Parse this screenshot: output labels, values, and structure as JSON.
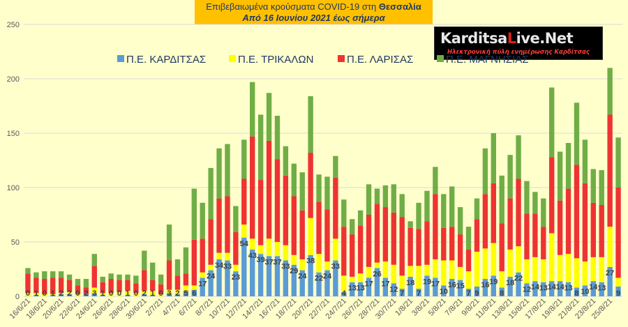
{
  "header": {
    "title_line1_prefix": "Επιβεβαιωμένα κρούσματα COVID-19 στη ",
    "title_line1_bold": "Θεσσαλία",
    "title_line2": "Από 16 Ιουνίου 2021 έως σήμερα"
  },
  "logo": {
    "main_prefix": "Karditsa",
    "main_accent": "L",
    "main_suffix": "ive.Net",
    "tagline": "Ηλεκτρονική πύλη ενημέρωσης Καρδίτσας"
  },
  "colors": {
    "karditsa": "#5b9bd5",
    "trikala": "#ffff00",
    "larisa": "#ee3333",
    "magnisia": "#70ad47",
    "grid": "#d9d9d9"
  },
  "chart_data": {
    "type": "bar",
    "stacked": true,
    "ylim": [
      0,
      250
    ],
    "yticks": [
      0,
      50,
      100,
      150,
      200,
      250
    ],
    "grid": true,
    "legend_position": "top",
    "x_tick_labels": [
      "16/6/21",
      "18/6/21",
      "20/6/21",
      "22/6/21",
      "24/6/21",
      "26/6/21",
      "28/6/21",
      "30/6/21",
      "2/7/21",
      "4/7/21",
      "6/7/21",
      "8/7/21",
      "10/7/21",
      "12/7/21",
      "14/7/21",
      "16/7/21",
      "18/7/21",
      "20/7/21",
      "22/7/21",
      "24/7/21",
      "26/7/21",
      "28/7/21",
      "30/7/21",
      "1/8/21",
      "3/8/21",
      "5/8/21",
      "7/8/21",
      "9/8/21",
      "11/8/21",
      "13/8/21",
      "15/8/21",
      "17/8/21",
      "19/8/21",
      "21/8/21",
      "23/8/21",
      "25/8/21"
    ],
    "series": [
      {
        "name": "Π.Ε. ΚΑΡΔΙΤΣΑΣ",
        "color": "#5b9bd5",
        "values": [
          0,
          1,
          0,
          1,
          2,
          2,
          0,
          2,
          3,
          1,
          0,
          0,
          1,
          0,
          2,
          1,
          0,
          3,
          2,
          5,
          6,
          17,
          24,
          34,
          33,
          23,
          54,
          43,
          39,
          37,
          37,
          33,
          29,
          24,
          38,
          22,
          24,
          33,
          4,
          13,
          13,
          17,
          26,
          17,
          12,
          7,
          18,
          7,
          19,
          17,
          10,
          16,
          15,
          7,
          9,
          16,
          19,
          8,
          18,
          22,
          12,
          14,
          13,
          14,
          14,
          13,
          8,
          10,
          14,
          13,
          27,
          9
        ]
      },
      {
        "name": "Π.Ε. ΤΡΙΚΑΛΩΝ",
        "color": "#ffff00",
        "values": [
          3,
          2,
          2,
          1,
          1,
          2,
          2,
          0,
          5,
          2,
          3,
          4,
          4,
          3,
          3,
          4,
          2,
          3,
          4,
          5,
          4,
          5,
          5,
          6,
          7,
          6,
          12,
          10,
          8,
          16,
          13,
          14,
          9,
          10,
          34,
          17,
          8,
          20,
          15,
          5,
          8,
          10,
          5,
          15,
          17,
          12,
          10,
          21,
          10,
          17,
          23,
          17,
          12,
          16,
          32,
          28,
          30,
          15,
          25,
          24,
          22,
          22,
          21,
          44,
          24,
          26,
          27,
          22,
          22,
          23,
          37,
          8
        ]
      },
      {
        "name": "Π.Ε. ΛΑΡΙΣΑΣ",
        "color": "#ee3333",
        "values": [
          18,
          14,
          14,
          15,
          14,
          11,
          8,
          6,
          20,
          10,
          13,
          11,
          10,
          9,
          19,
          10,
          9,
          27,
          13,
          11,
          42,
          31,
          42,
          50,
          52,
          30,
          42,
          94,
          60,
          90,
          76,
          64,
          54,
          45,
          60,
          48,
          48,
          56,
          45,
          39,
          44,
          48,
          54,
          50,
          48,
          54,
          35,
          34,
          40,
          60,
          30,
          31,
          30,
          20,
          30,
          50,
          55,
          44,
          47,
          62,
          42,
          40,
          30,
          70,
          50,
          60,
          86,
          72,
          50,
          48,
          103,
          83
        ]
      },
      {
        "name": "Π.Ε. ΜΑΓΝΗΣΙΑΣ",
        "color": "#70ad47",
        "values": [
          5,
          5,
          7,
          6,
          6,
          5,
          6,
          8,
          11,
          5,
          5,
          5,
          5,
          7,
          18,
          16,
          9,
          33,
          15,
          24,
          47,
          33,
          47,
          46,
          48,
          24,
          36,
          50,
          60,
          44,
          40,
          27,
          30,
          35,
          52,
          25,
          30,
          20,
          25,
          14,
          14,
          28,
          14,
          20,
          26,
          21,
          6,
          24,
          28,
          25,
          31,
          37,
          25,
          21,
          19,
          42,
          46,
          44,
          40,
          40,
          30,
          20,
          26,
          64,
          45,
          42,
          57,
          40,
          31,
          32,
          43,
          46
        ]
      }
    ],
    "data_labels": [
      "0",
      "1",
      "0",
      "1",
      "2",
      "2",
      "0",
      "2",
      "3",
      "1",
      "0",
      "0",
      "1",
      "0",
      "2",
      "1",
      "0",
      "3",
      "2",
      "5",
      "6",
      "17",
      "24",
      "34",
      "33",
      "23",
      "54",
      "43",
      "39",
      "37",
      "37",
      "33",
      "29",
      "24",
      "38",
      "22",
      "24",
      "33",
      "4",
      "13",
      "13",
      "17",
      "26",
      "17",
      "12",
      "7",
      "18",
      "7",
      "19",
      "17",
      "10",
      "16",
      "15",
      "7",
      "9",
      "16",
      "19",
      "8",
      "18",
      "22",
      "12",
      "14",
      "13",
      "14",
      "14",
      "13",
      "8",
      "10",
      "14",
      "13",
      "27",
      "9"
    ]
  }
}
